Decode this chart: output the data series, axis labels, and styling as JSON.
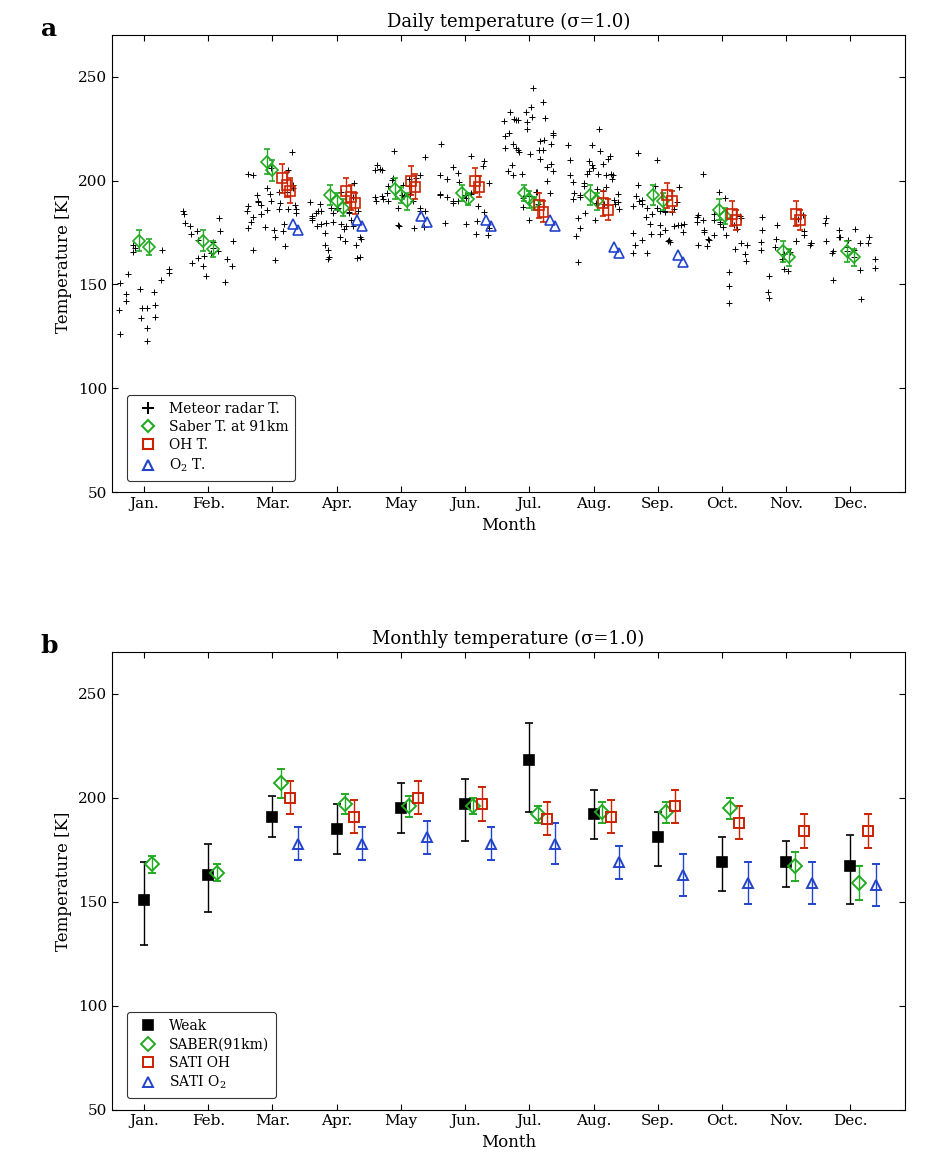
{
  "panel_a_title": "Daily temperature (σ=1.0)",
  "panel_b_title": "Monthly temperature (σ=1.0)",
  "xlabel": "Month",
  "ylabel": "Temperature [K]",
  "months_labels": [
    "Jan.",
    "Feb.",
    "Mar.",
    "Apr.",
    "May",
    "Jun.",
    "Jul.",
    "Aug.",
    "Sep.",
    "Oct.",
    "Nov.",
    "Dec."
  ],
  "ylim_a": [
    50,
    270
  ],
  "ylim_b": [
    50,
    270
  ],
  "yticks": [
    50,
    100,
    150,
    200,
    250
  ],
  "weak_monthly_x": [
    1,
    2,
    3,
    4,
    5,
    6,
    7,
    8,
    9,
    10,
    11,
    12
  ],
  "weak_monthly_y": [
    151,
    163,
    191,
    185,
    195,
    197,
    218,
    192,
    181,
    169,
    169,
    167
  ],
  "weak_monthly_yerr_lo": [
    22,
    18,
    10,
    12,
    12,
    18,
    25,
    12,
    14,
    14,
    12,
    18
  ],
  "weak_monthly_yerr_hi": [
    18,
    15,
    10,
    12,
    12,
    12,
    18,
    12,
    12,
    12,
    10,
    15
  ],
  "saber_monthly_x": [
    1,
    2,
    3,
    4,
    5,
    6,
    7,
    8,
    9,
    10,
    11,
    12
  ],
  "saber_monthly_y": [
    168,
    164,
    207,
    197,
    196,
    196,
    192,
    193,
    193,
    195,
    167,
    159
  ],
  "saber_monthly_yerr": [
    4,
    4,
    7,
    5,
    5,
    4,
    4,
    5,
    5,
    5,
    7,
    8
  ],
  "oh_monthly_x": [
    3,
    4,
    5,
    6,
    7,
    8,
    9,
    10,
    11,
    12
  ],
  "oh_monthly_y": [
    200,
    191,
    200,
    197,
    190,
    191,
    196,
    188,
    184,
    184
  ],
  "oh_monthly_yerr_lo": [
    8,
    8,
    8,
    8,
    8,
    8,
    8,
    8,
    8,
    8
  ],
  "oh_monthly_yerr_hi": [
    8,
    8,
    8,
    8,
    8,
    8,
    8,
    8,
    8,
    8
  ],
  "o2_monthly_x": [
    3,
    4,
    5,
    6,
    7,
    8,
    9,
    10,
    11,
    12
  ],
  "o2_monthly_y": [
    178,
    178,
    181,
    178,
    178,
    169,
    163,
    159,
    159,
    158
  ],
  "o2_monthly_yerr": [
    8,
    8,
    8,
    8,
    10,
    8,
    10,
    10,
    10,
    10
  ],
  "color_black": "#000000",
  "color_green": "#22aa22",
  "color_red": "#cc2200",
  "color_blue": "#2244cc",
  "background_color": "#ffffff",
  "monthly_means": [
    150,
    167,
    188,
    186,
    197,
    196,
    212,
    198,
    185,
    176,
    167,
    163
  ],
  "monthly_stds": [
    12,
    13,
    18,
    17,
    17,
    18,
    20,
    17,
    17,
    14,
    14,
    14
  ],
  "monthly_counts": [
    22,
    22,
    38,
    40,
    32,
    28,
    45,
    42,
    38,
    32,
    25,
    22
  ],
  "saber_daily_months": [
    1,
    1,
    2,
    2,
    3,
    3,
    4,
    4,
    4,
    5,
    5,
    5,
    6,
    6,
    7,
    7,
    7,
    8,
    8,
    9,
    9,
    10,
    10,
    11,
    11,
    12,
    12
  ],
  "saber_daily_y": [
    171,
    168,
    171,
    167,
    209,
    205,
    193,
    190,
    187,
    196,
    193,
    190,
    194,
    191,
    194,
    191,
    189,
    193,
    190,
    193,
    190,
    186,
    183,
    166,
    163,
    166,
    163
  ],
  "saber_daily_yerr": [
    5,
    4,
    5,
    4,
    6,
    5,
    5,
    4,
    4,
    5,
    4,
    4,
    4,
    3,
    4,
    4,
    3,
    5,
    4,
    5,
    4,
    5,
    4,
    5,
    4,
    5,
    4
  ],
  "saber_daily_xoff": [
    -0.08,
    0.08,
    -0.08,
    0.08,
    -0.08,
    0.0,
    -0.1,
    0.0,
    0.1,
    -0.1,
    0.0,
    0.1,
    -0.05,
    0.05,
    -0.08,
    0.0,
    0.08,
    -0.05,
    0.05,
    -0.08,
    0.08,
    -0.05,
    0.05,
    -0.05,
    0.05,
    -0.05,
    0.05
  ],
  "oh_daily_months": [
    3,
    3,
    3,
    4,
    4,
    4,
    5,
    5,
    6,
    6,
    7,
    7,
    8,
    8,
    9,
    9,
    10,
    10,
    11,
    11
  ],
  "oh_daily_y": [
    201,
    198,
    195,
    195,
    192,
    189,
    200,
    197,
    200,
    197,
    188,
    185,
    189,
    186,
    193,
    190,
    184,
    181,
    184,
    181
  ],
  "oh_daily_yerr": [
    7,
    6,
    6,
    6,
    6,
    5,
    7,
    6,
    6,
    5,
    6,
    5,
    6,
    5,
    6,
    5,
    6,
    5,
    6,
    5
  ],
  "oh_daily_xoff": [
    0.15,
    0.22,
    0.28,
    0.15,
    0.22,
    0.28,
    0.15,
    0.22,
    0.15,
    0.22,
    0.15,
    0.22,
    0.15,
    0.22,
    0.15,
    0.22,
    0.15,
    0.22,
    0.15,
    0.22
  ],
  "o2_daily_months": [
    3,
    3,
    4,
    4,
    5,
    5,
    6,
    6,
    7,
    7,
    8,
    8,
    9,
    9
  ],
  "o2_daily_y": [
    179,
    176,
    181,
    178,
    183,
    180,
    181,
    178,
    181,
    178,
    168,
    165,
    164,
    161
  ],
  "o2_daily_xoff": [
    0.32,
    0.4,
    0.32,
    0.4,
    0.32,
    0.4,
    0.32,
    0.4,
    0.32,
    0.4,
    0.32,
    0.4,
    0.32,
    0.4
  ]
}
